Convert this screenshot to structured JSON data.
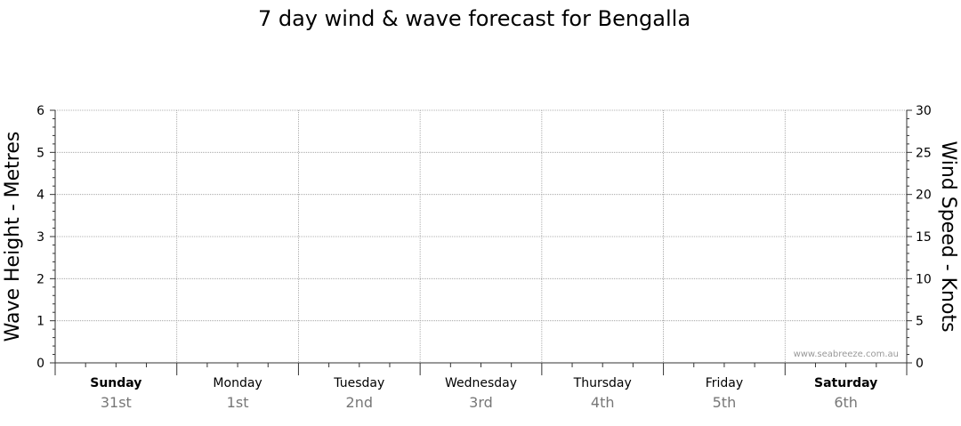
{
  "chart_data": {
    "type": "line",
    "title": "7 day wind & wave forecast for Bengalla",
    "y_left": {
      "label": "Wave Height - Metres",
      "range": [
        0,
        6
      ],
      "ticks": [
        0,
        1,
        2,
        3,
        4,
        5,
        6
      ]
    },
    "y_right": {
      "label": "Wind Speed - Knots",
      "range": [
        0,
        30
      ],
      "ticks": [
        0,
        5,
        10,
        15,
        20,
        25,
        30
      ]
    },
    "days": [
      {
        "name": "Sunday",
        "date": "31st",
        "weekend": true
      },
      {
        "name": "Monday",
        "date": "1st",
        "weekend": false
      },
      {
        "name": "Tuesday",
        "date": "2nd",
        "weekend": false
      },
      {
        "name": "Wednesday",
        "date": "3rd",
        "weekend": false
      },
      {
        "name": "Thursday",
        "date": "4th",
        "weekend": false
      },
      {
        "name": "Friday",
        "date": "5th",
        "weekend": false
      },
      {
        "name": "Saturday",
        "date": "6th",
        "weekend": true
      }
    ],
    "series": [],
    "grid": true,
    "watermark": "www.seabreeze.com.au"
  },
  "colors": {
    "text": "#000000",
    "date_text": "#777777",
    "grid": "#999999",
    "axis": "#333333",
    "watermark": "#999999"
  }
}
